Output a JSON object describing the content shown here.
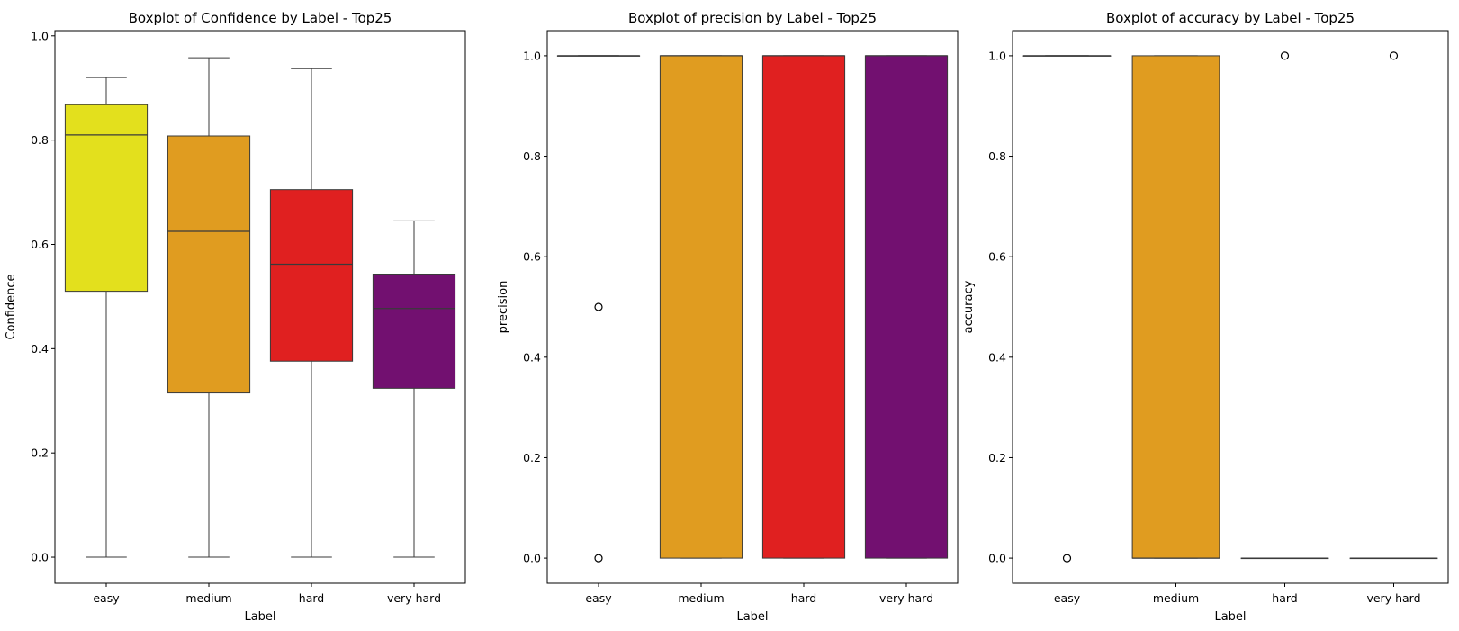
{
  "chart_data": [
    {
      "type": "boxplot",
      "title": "Boxplot of Confidence by Label - Top25",
      "xlabel": "Label",
      "ylabel": "Confidence",
      "ylim": [
        -0.05,
        1.01
      ],
      "yticks": [
        "0.0",
        "0.2",
        "0.4",
        "0.6",
        "0.8",
        "1.0"
      ],
      "categories": [
        "easy",
        "medium",
        "hard",
        "very hard"
      ],
      "colors": [
        "#e3e01d",
        "#e09c20",
        "#e02020",
        "#721070"
      ],
      "boxes": [
        {
          "whislo": 0.0,
          "q1": 0.51,
          "med": 0.81,
          "q3": 0.868,
          "whishi": 0.92,
          "fliers": []
        },
        {
          "whislo": 0.0,
          "q1": 0.315,
          "med": 0.625,
          "q3": 0.808,
          "whishi": 0.958,
          "fliers": []
        },
        {
          "whislo": 0.0,
          "q1": 0.376,
          "med": 0.562,
          "q3": 0.705,
          "whishi": 0.937,
          "fliers": []
        },
        {
          "whislo": 0.0,
          "q1": 0.324,
          "med": 0.477,
          "q3": 0.543,
          "whishi": 0.645,
          "fliers": []
        }
      ]
    },
    {
      "type": "boxplot",
      "title": "Boxplot of precision by Label - Top25",
      "xlabel": "Label",
      "ylabel": "precision",
      "ylim": [
        -0.05,
        1.05
      ],
      "yticks": [
        "0.0",
        "0.2",
        "0.4",
        "0.6",
        "0.8",
        "1.0"
      ],
      "categories": [
        "easy",
        "medium",
        "hard",
        "very hard"
      ],
      "colors": [
        "#e3e01d",
        "#e09c20",
        "#e02020",
        "#721070"
      ],
      "boxes": [
        {
          "whislo": 1.0,
          "q1": 1.0,
          "med": 1.0,
          "q3": 1.0,
          "whishi": 1.0,
          "fliers": [
            0.5,
            0.0
          ]
        },
        {
          "whislo": 0.0,
          "q1": 0.0,
          "med": 1.0,
          "q3": 1.0,
          "whishi": 1.0,
          "fliers": []
        },
        {
          "whislo": 0.0,
          "q1": 0.0,
          "med": 1.0,
          "q3": 1.0,
          "whishi": 1.0,
          "fliers": []
        },
        {
          "whislo": 0.0,
          "q1": 0.0,
          "med": 1.0,
          "q3": 1.0,
          "whishi": 1.0,
          "fliers": []
        }
      ]
    },
    {
      "type": "boxplot",
      "title": "Boxplot of accuracy by Label - Top25",
      "xlabel": "Label",
      "ylabel": "accuracy",
      "ylim": [
        -0.05,
        1.05
      ],
      "yticks": [
        "0.0",
        "0.2",
        "0.4",
        "0.6",
        "0.8",
        "1.0"
      ],
      "categories": [
        "easy",
        "medium",
        "hard",
        "very hard"
      ],
      "colors": [
        "#e3e01d",
        "#e09c20",
        "#e02020",
        "#721070"
      ],
      "boxes": [
        {
          "whislo": 1.0,
          "q1": 1.0,
          "med": 1.0,
          "q3": 1.0,
          "whishi": 1.0,
          "fliers": [
            0.0
          ]
        },
        {
          "whislo": 0.0,
          "q1": 0.0,
          "med": 0.0,
          "q3": 1.0,
          "whishi": 1.0,
          "fliers": []
        },
        {
          "whislo": 0.0,
          "q1": 0.0,
          "med": 0.0,
          "q3": 0.0,
          "whishi": 0.0,
          "fliers": [
            1.0
          ]
        },
        {
          "whislo": 0.0,
          "q1": 0.0,
          "med": 0.0,
          "q3": 0.0,
          "whishi": 0.0,
          "fliers": [
            1.0
          ]
        }
      ]
    }
  ]
}
